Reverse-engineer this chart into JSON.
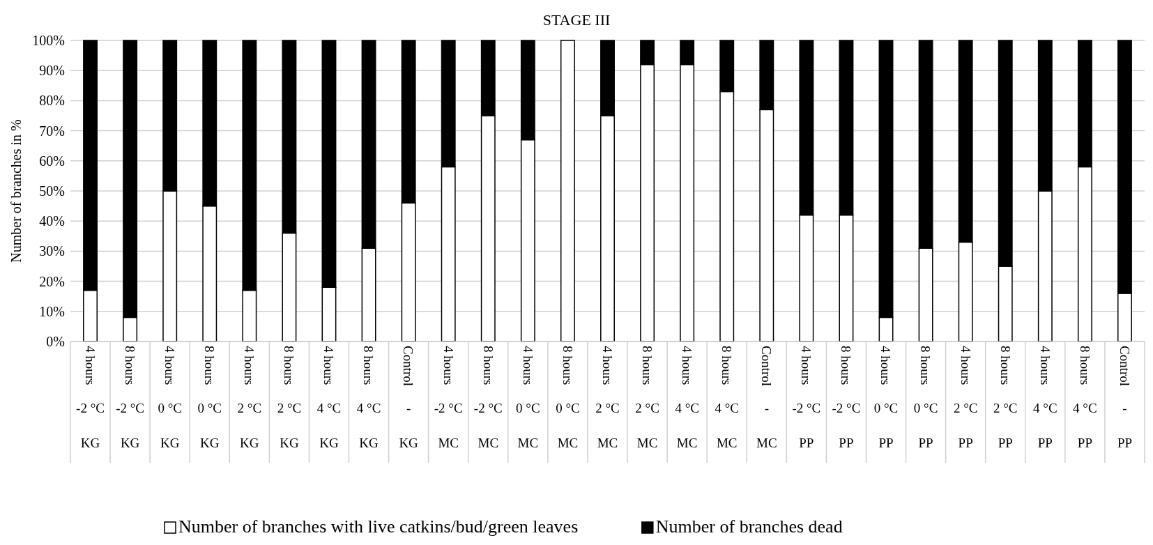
{
  "chart_data": {
    "type": "bar",
    "title": "STAGE III",
    "ylabel": "Number of branches in %",
    "stacked": true,
    "categories": [
      "4 hours\n-2 °C\nKG",
      "8 hours\n-2 °C\nKG",
      "4 hours\n0 °C\nKG",
      "8 hours\n0 °C\nKG",
      "4 hours\n2 °C\nKG",
      "8 hours\n2 °C\nKG",
      "4 hours\n4 °C\nKG",
      "8 hours\n4 °C\nKG",
      "Control\n-\nKG",
      "4 hours\n-2 °C\nMC",
      "8 hours\n-2 °C\nMC",
      "4 hours\n0 °C\nMC",
      "8 hours\n0 °C\nMC",
      "4 hours\n2 °C\nMC",
      "8 hours\n2 °C\nMC",
      "4 hours\n4 °C\nMC",
      "8 hours\n4 °C\nMC",
      "Control\n-\nMC",
      "4 hours\n-2 °C\nPP",
      "8 hours\n-2 °C\nPP",
      "4 hours\n0 °C\nPP",
      "8 hours\n0 °C\nPP",
      "4 hours\n2 °C\nPP",
      "8 hours\n2 °C\nPP",
      "4 hours\n4 °C\nPP",
      "8 hours\n4 °C\nPP",
      "Control\n-\nPP"
    ],
    "series": [
      {
        "name": "Number of branches with live catkins/bud/green leaves",
        "color": "#ffffff",
        "values": [
          17,
          8,
          50,
          45,
          17,
          36,
          18,
          31,
          46,
          58,
          75,
          67,
          100,
          75,
          92,
          92,
          83,
          77,
          42,
          42,
          8,
          31,
          33,
          25,
          50,
          58,
          16
        ]
      },
      {
        "name": "Number of branches dead",
        "color": "#000000",
        "values": [
          83,
          92,
          50,
          55,
          83,
          64,
          82,
          69,
          54,
          42,
          25,
          33,
          0,
          25,
          8,
          8,
          17,
          23,
          58,
          58,
          92,
          69,
          67,
          75,
          50,
          42,
          84
        ]
      }
    ],
    "ylim": [
      0,
      100
    ],
    "yticks": [
      {
        "value": 0,
        "label": "0%"
      },
      {
        "value": 10,
        "label": "10%"
      },
      {
        "value": 20,
        "label": "20%"
      },
      {
        "value": 30,
        "label": "30%"
      },
      {
        "value": 40,
        "label": "40%"
      },
      {
        "value": 50,
        "label": "50%"
      },
      {
        "value": 60,
        "label": "60%"
      },
      {
        "value": 70,
        "label": "70%"
      },
      {
        "value": 80,
        "label": "80%"
      },
      {
        "value": 90,
        "label": "90%"
      },
      {
        "value": 100,
        "label": "100%"
      }
    ],
    "grid": "y",
    "legend": "bottom"
  }
}
